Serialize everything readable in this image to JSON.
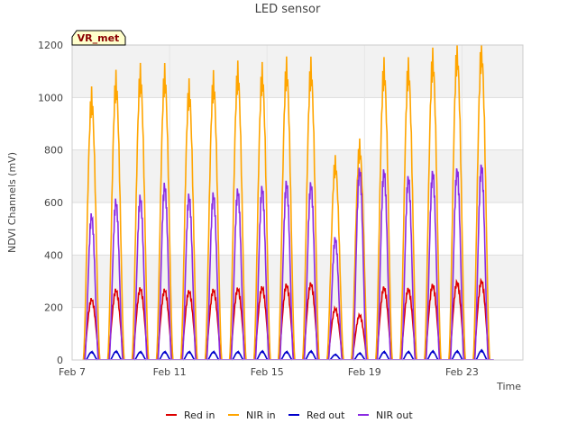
{
  "chart_data": {
    "type": "line",
    "title": "LED sensor",
    "xlabel": "Time",
    "ylabel": "NDVI Channels (mV)",
    "badge": "VR_met",
    "ylim": [
      0,
      1200
    ],
    "yticks": [
      0,
      200,
      400,
      600,
      800,
      1000,
      1200
    ],
    "xlim": [
      7,
      25.5
    ],
    "xticks": [
      7,
      11,
      15,
      19,
      23
    ],
    "xtick_labels": [
      "Feb 7",
      "Feb 11",
      "Feb 15",
      "Feb 19",
      "Feb 23"
    ],
    "grid": true,
    "legend_position": "bottom",
    "day_centers": [
      7.8,
      8.8,
      9.8,
      10.8,
      11.8,
      12.8,
      13.8,
      14.8,
      15.8,
      16.8,
      17.8,
      18.8,
      19.8,
      20.8,
      21.8,
      22.8,
      23.8
    ],
    "series": [
      {
        "name": "Red in",
        "color": "#dd0000",
        "values": [
          230,
          265,
          270,
          265,
          260,
          265,
          270,
          275,
          285,
          290,
          195,
          170,
          275,
          270,
          285,
          295,
          300
        ]
      },
      {
        "name": "NIR in",
        "color": "#ffa500",
        "values": [
          985,
          1045,
          1070,
          1070,
          1015,
          1045,
          1080,
          1075,
          1095,
          1095,
          740,
          800,
          1095,
          1095,
          1130,
          1155,
          1165
        ]
      },
      {
        "name": "Red out",
        "color": "#0000cc",
        "values": [
          30,
          32,
          30,
          30,
          30,
          30,
          30,
          32,
          30,
          32,
          20,
          25,
          30,
          30,
          32,
          32,
          35
        ]
      },
      {
        "name": "NIR out",
        "color": "#8a2be2",
        "values": [
          545,
          600,
          615,
          660,
          620,
          625,
          640,
          650,
          670,
          665,
          460,
          720,
          715,
          690,
          710,
          720,
          735
        ]
      }
    ]
  }
}
